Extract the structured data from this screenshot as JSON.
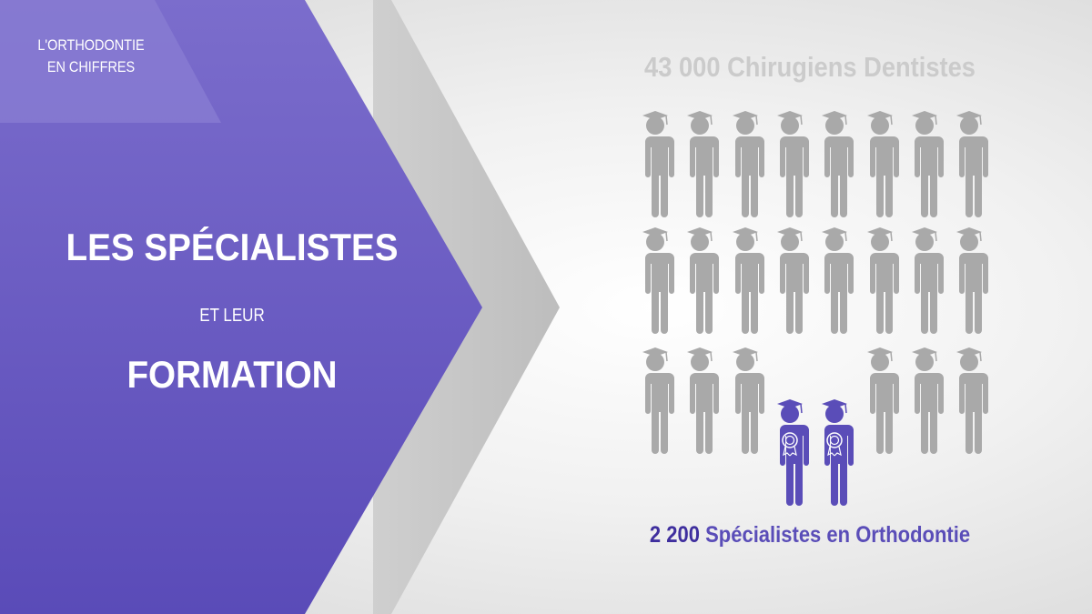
{
  "sidebar": {
    "kicker_line1": "L'ORTHODONTIE",
    "kicker_line2": "EN CHIFFRES",
    "title_line1": "LES SPÉCIALISTES",
    "title_line2": "ET LEUR",
    "title_line3": "FORMATION"
  },
  "infographic": {
    "total_label": "43 000 Chirugiens Dentistes",
    "specialists_number": "2 200",
    "specialists_label": "Spécialistes en Orthodontie",
    "figure_icon": "graduate-person-icon",
    "specialist_icon": "graduate-person-with-award-icon",
    "dentist_figures": 22,
    "specialist_figures": 2
  },
  "colors": {
    "panel_purple": "#6a5cc3",
    "panel_purple_light": "#8577d0",
    "specialist_purple": "#5a4db8",
    "dentist_gray": "#a9a9a9"
  }
}
